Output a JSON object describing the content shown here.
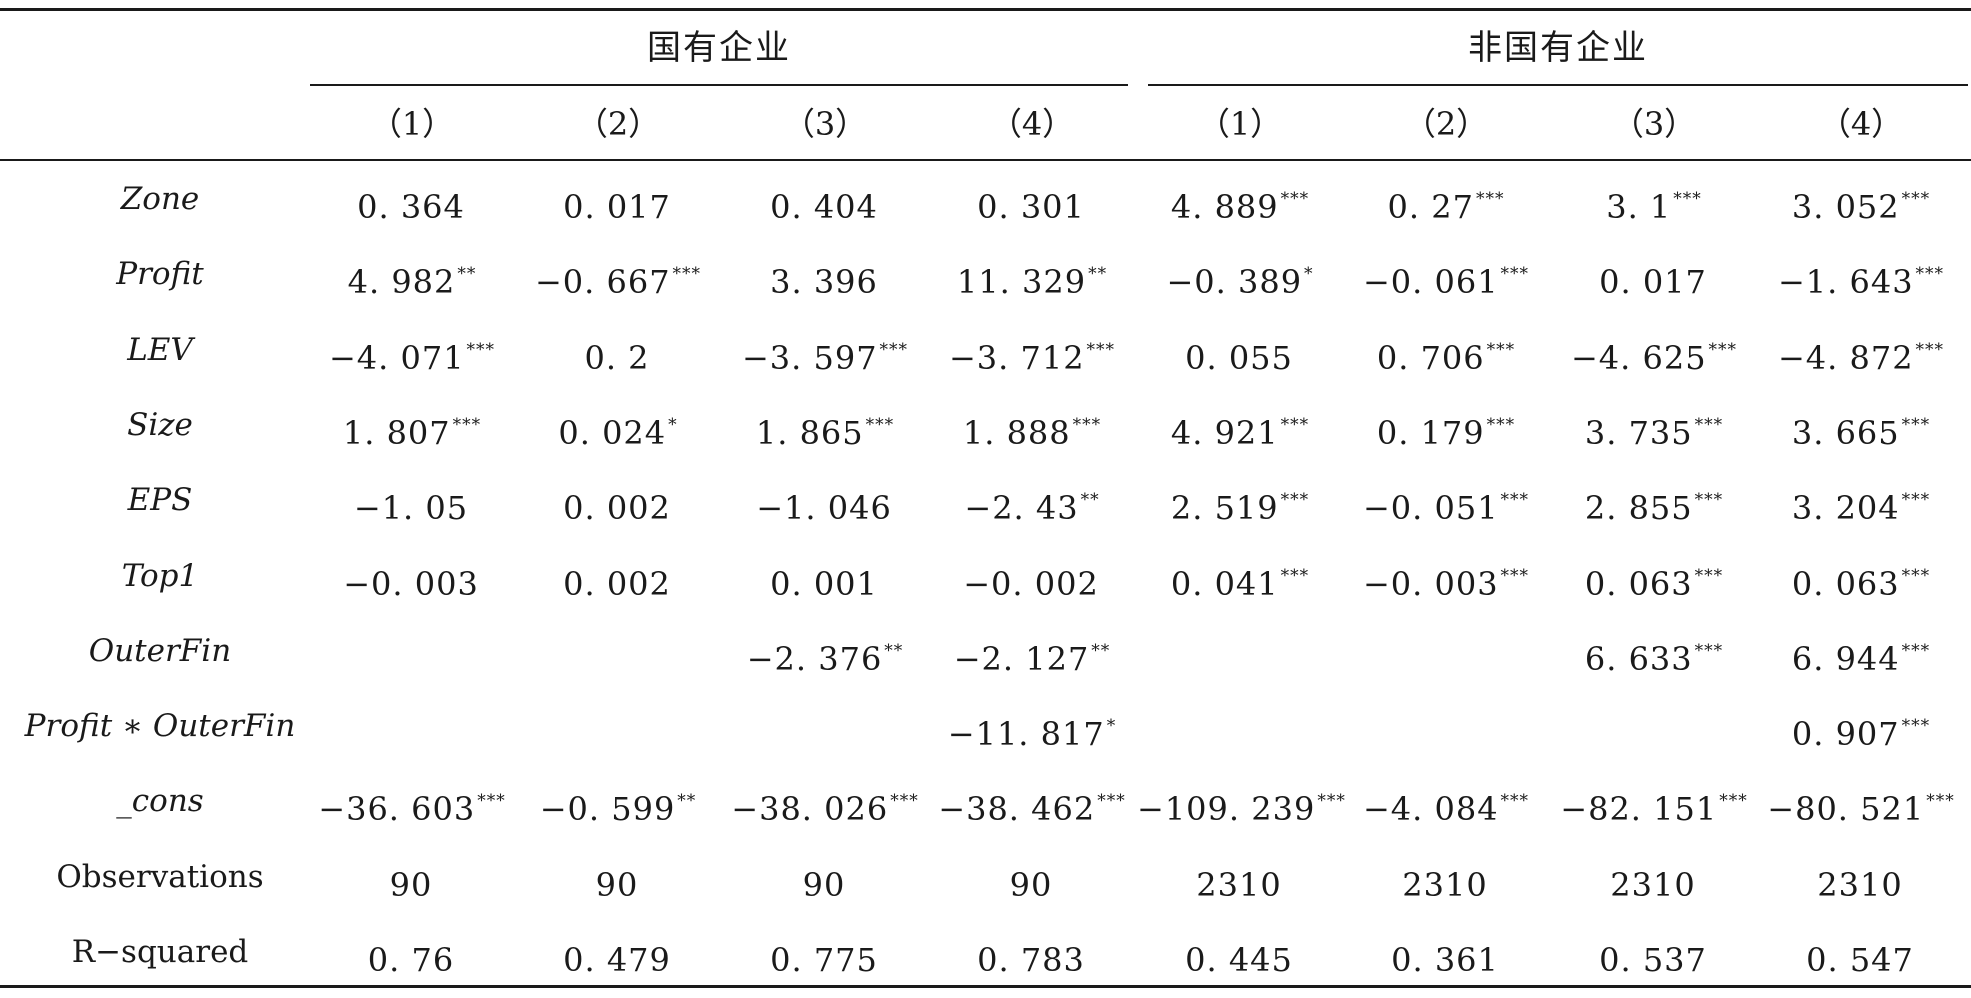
{
  "table": {
    "groups": [
      {
        "label": "国有企业"
      },
      {
        "label": "非国有企业"
      }
    ],
    "column_headers": [
      "（1）",
      "（2）",
      "（3）",
      "（4）",
      "（1）",
      "（2）",
      "（3）",
      "（4）"
    ],
    "rows": [
      {
        "label": "Zone",
        "italic": true,
        "cells": [
          {
            "v": "0. 364",
            "s": ""
          },
          {
            "v": "0. 017",
            "s": ""
          },
          {
            "v": "0. 404",
            "s": ""
          },
          {
            "v": "0. 301",
            "s": ""
          },
          {
            "v": "4. 889",
            "s": "***"
          },
          {
            "v": "0. 27",
            "s": "***"
          },
          {
            "v": "3. 1",
            "s": "***"
          },
          {
            "v": "3. 052",
            "s": "***"
          }
        ]
      },
      {
        "label": "Profit",
        "italic": true,
        "cells": [
          {
            "v": "4. 982",
            "s": "**"
          },
          {
            "v": "−0. 667",
            "s": "***"
          },
          {
            "v": "3. 396",
            "s": ""
          },
          {
            "v": "11. 329",
            "s": "**"
          },
          {
            "v": "−0. 389",
            "s": "*"
          },
          {
            "v": "−0. 061",
            "s": "***"
          },
          {
            "v": "0. 017",
            "s": ""
          },
          {
            "v": "−1. 643",
            "s": "***"
          }
        ]
      },
      {
        "label": "LEV",
        "italic": true,
        "cells": [
          {
            "v": "−4. 071",
            "s": "***"
          },
          {
            "v": "0. 2",
            "s": ""
          },
          {
            "v": "−3. 597",
            "s": "***"
          },
          {
            "v": "−3. 712",
            "s": "***"
          },
          {
            "v": "0. 055",
            "s": ""
          },
          {
            "v": "0. 706",
            "s": "***"
          },
          {
            "v": "−4. 625",
            "s": "***"
          },
          {
            "v": "−4. 872",
            "s": "***"
          }
        ]
      },
      {
        "label": "Size",
        "italic": true,
        "cells": [
          {
            "v": "1. 807",
            "s": "***"
          },
          {
            "v": "0. 024",
            "s": "*"
          },
          {
            "v": "1. 865",
            "s": "***"
          },
          {
            "v": "1. 888",
            "s": "***"
          },
          {
            "v": "4. 921",
            "s": "***"
          },
          {
            "v": "0. 179",
            "s": "***"
          },
          {
            "v": "3. 735",
            "s": "***"
          },
          {
            "v": "3. 665",
            "s": "***"
          }
        ]
      },
      {
        "label": "EPS",
        "italic": true,
        "cells": [
          {
            "v": "−1. 05",
            "s": ""
          },
          {
            "v": "0. 002",
            "s": ""
          },
          {
            "v": "−1. 046",
            "s": ""
          },
          {
            "v": "−2. 43",
            "s": "**"
          },
          {
            "v": "2. 519",
            "s": "***"
          },
          {
            "v": "−0. 051",
            "s": "***"
          },
          {
            "v": "2. 855",
            "s": "***"
          },
          {
            "v": "3. 204",
            "s": "***"
          }
        ]
      },
      {
        "label": "Top1",
        "italic": true,
        "cells": [
          {
            "v": "−0. 003",
            "s": ""
          },
          {
            "v": "0. 002",
            "s": ""
          },
          {
            "v": "0. 001",
            "s": ""
          },
          {
            "v": "−0. 002",
            "s": ""
          },
          {
            "v": "0. 041",
            "s": "***"
          },
          {
            "v": "−0. 003",
            "s": "***"
          },
          {
            "v": "0. 063",
            "s": "***"
          },
          {
            "v": "0. 063",
            "s": "***"
          }
        ]
      },
      {
        "label": "OuterFin",
        "italic": true,
        "cells": [
          {
            "v": "",
            "s": ""
          },
          {
            "v": "",
            "s": ""
          },
          {
            "v": "−2. 376",
            "s": "**"
          },
          {
            "v": "−2. 127",
            "s": "**"
          },
          {
            "v": "",
            "s": ""
          },
          {
            "v": "",
            "s": ""
          },
          {
            "v": "6. 633",
            "s": "***"
          },
          {
            "v": "6. 944",
            "s": "***"
          }
        ]
      },
      {
        "label": "Profit ∗ OuterFin",
        "italic": true,
        "cells": [
          {
            "v": "",
            "s": ""
          },
          {
            "v": "",
            "s": ""
          },
          {
            "v": "",
            "s": ""
          },
          {
            "v": "−11. 817",
            "s": "*"
          },
          {
            "v": "",
            "s": ""
          },
          {
            "v": "",
            "s": ""
          },
          {
            "v": "",
            "s": ""
          },
          {
            "v": "0. 907",
            "s": "***"
          }
        ]
      },
      {
        "label": "_cons",
        "italic": true,
        "cells": [
          {
            "v": "−36. 603",
            "s": "***"
          },
          {
            "v": "−0. 599",
            "s": "**"
          },
          {
            "v": "−38. 026",
            "s": "***"
          },
          {
            "v": "−38. 462",
            "s": "***"
          },
          {
            "v": "−109. 239",
            "s": "***"
          },
          {
            "v": "−4. 084",
            "s": "***"
          },
          {
            "v": "−82. 151",
            "s": "***"
          },
          {
            "v": "−80. 521",
            "s": "***"
          }
        ]
      },
      {
        "label": "Observations",
        "italic": false,
        "cells": [
          {
            "v": "90",
            "s": ""
          },
          {
            "v": "90",
            "s": ""
          },
          {
            "v": "90",
            "s": ""
          },
          {
            "v": "90",
            "s": ""
          },
          {
            "v": "2310",
            "s": ""
          },
          {
            "v": "2310",
            "s": ""
          },
          {
            "v": "2310",
            "s": ""
          },
          {
            "v": "2310",
            "s": ""
          }
        ]
      },
      {
        "label": "R−squared",
        "italic": false,
        "cells": [
          {
            "v": "0. 76",
            "s": ""
          },
          {
            "v": "0. 479",
            "s": ""
          },
          {
            "v": "0. 775",
            "s": ""
          },
          {
            "v": "0. 783",
            "s": ""
          },
          {
            "v": "0. 445",
            "s": ""
          },
          {
            "v": "0. 361",
            "s": ""
          },
          {
            "v": "0. 537",
            "s": ""
          },
          {
            "v": "0. 547",
            "s": ""
          }
        ]
      }
    ]
  }
}
